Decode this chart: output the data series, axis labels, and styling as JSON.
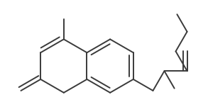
{
  "background": "#ffffff",
  "line_color": "#3a3a3a",
  "line_width": 1.4,
  "fig_width": 2.93,
  "fig_height": 1.51,
  "dpi": 100
}
